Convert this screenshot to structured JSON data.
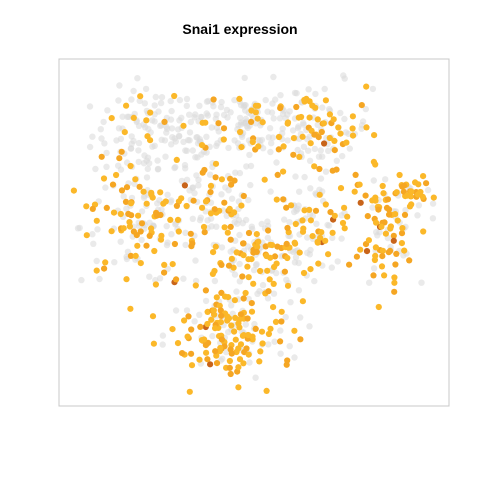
{
  "chart_data": {
    "type": "scatter",
    "title": "Snai1 expression",
    "xlabel": "",
    "ylabel": "",
    "axes_shown": false,
    "grid": false,
    "legend": "none",
    "colors": {
      "background_cells": "#d9d9d9",
      "low_expression": "#fbb829",
      "mid_expression": "#f5a623",
      "high_expression": "#c8641a",
      "frame": "#c8c8c8"
    },
    "clusters": [
      {
        "id": "top-left",
        "cx": 0.24,
        "cy": 0.8,
        "sx": 0.09,
        "sy": 0.07,
        "n_background": 120,
        "n_expressing": 18
      },
      {
        "id": "top-center",
        "cx": 0.48,
        "cy": 0.84,
        "sx": 0.09,
        "sy": 0.06,
        "n_background": 110,
        "n_expressing": 25
      },
      {
        "id": "top-right",
        "cx": 0.68,
        "cy": 0.82,
        "sx": 0.07,
        "sy": 0.07,
        "n_background": 60,
        "n_expressing": 55
      },
      {
        "id": "left",
        "cx": 0.19,
        "cy": 0.52,
        "sx": 0.08,
        "sy": 0.09,
        "n_background": 70,
        "n_expressing": 75
      },
      {
        "id": "center-left",
        "cx": 0.38,
        "cy": 0.58,
        "sx": 0.07,
        "sy": 0.08,
        "n_background": 55,
        "n_expressing": 30
      },
      {
        "id": "center",
        "cx": 0.52,
        "cy": 0.43,
        "sx": 0.08,
        "sy": 0.08,
        "n_background": 70,
        "n_expressing": 80
      },
      {
        "id": "center-right",
        "cx": 0.66,
        "cy": 0.52,
        "sx": 0.06,
        "sy": 0.07,
        "n_background": 45,
        "n_expressing": 35
      },
      {
        "id": "right",
        "cx": 0.86,
        "cy": 0.48,
        "sx": 0.04,
        "sy": 0.08,
        "n_background": 25,
        "n_expressing": 55
      },
      {
        "id": "far-right",
        "cx": 0.92,
        "cy": 0.62,
        "sx": 0.04,
        "sy": 0.03,
        "n_background": 10,
        "n_expressing": 30
      },
      {
        "id": "bottom",
        "cx": 0.44,
        "cy": 0.18,
        "sx": 0.09,
        "sy": 0.07,
        "n_background": 50,
        "n_expressing": 110
      }
    ]
  }
}
